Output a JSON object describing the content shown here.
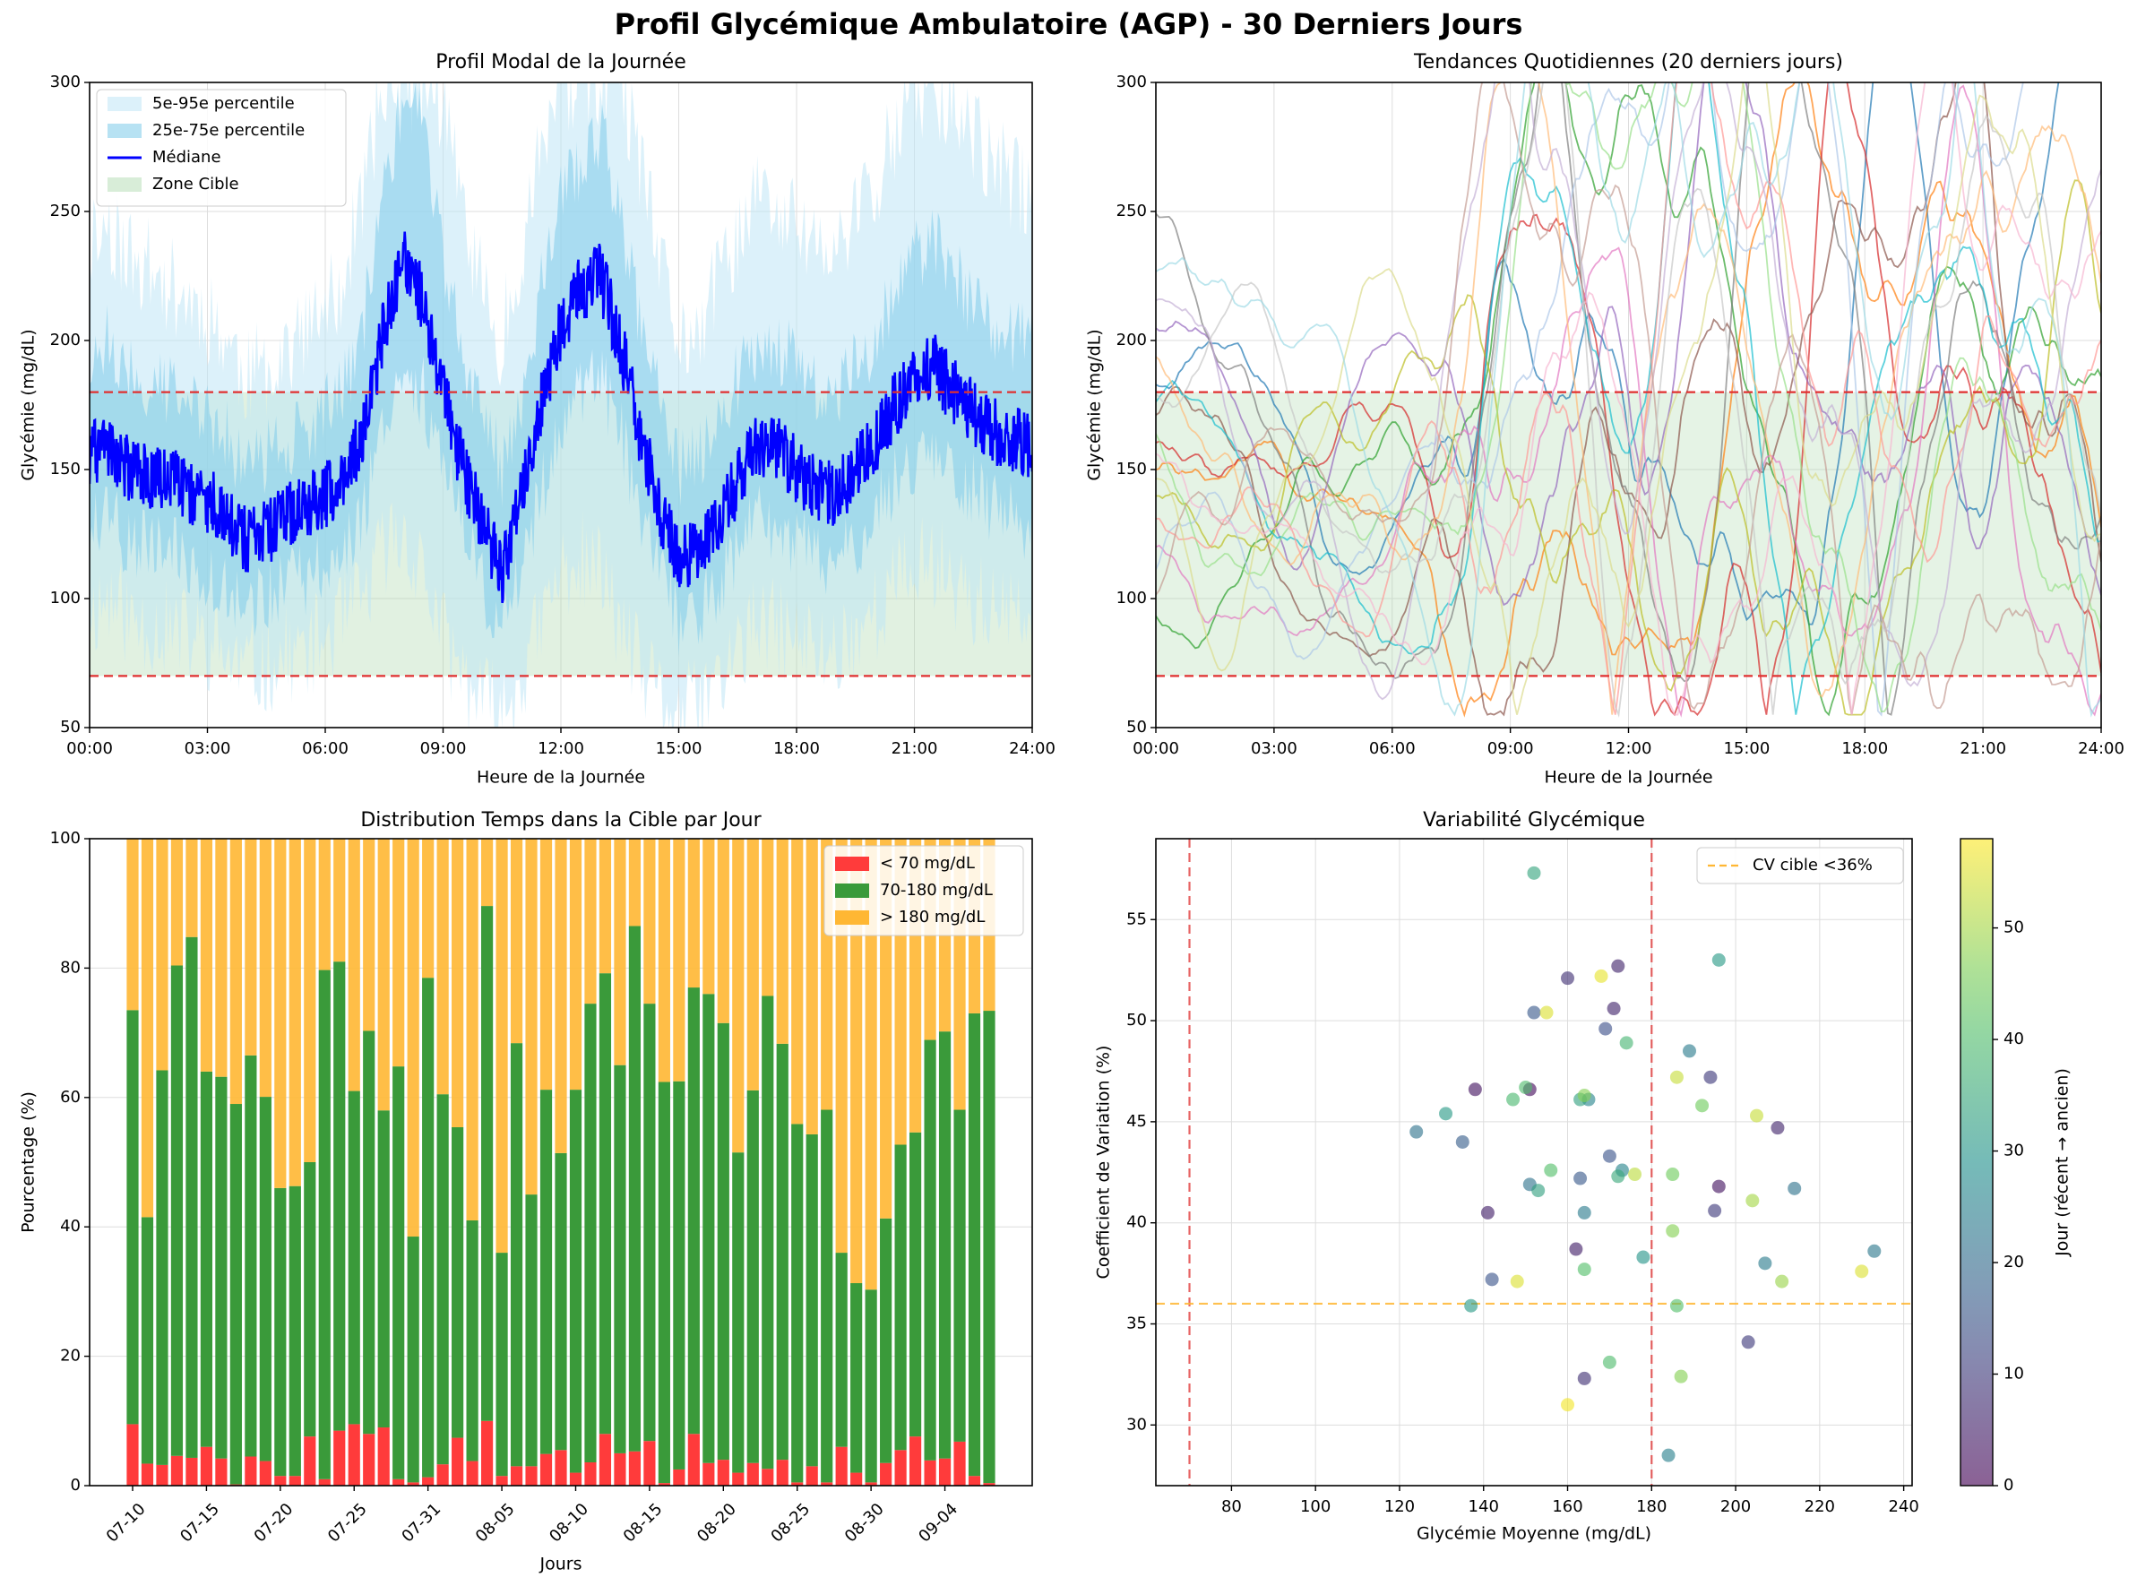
{
  "suptitle": "Profil Glycémique Ambulatoire (AGP) - 30 Derniers Jours",
  "colors": {
    "band95": "#bfe6f5",
    "band75": "#87ceeb",
    "median": "#0000ff",
    "target_zone": "#a8d8a8",
    "threshold": "#e03030",
    "below": "#ff3b3b",
    "inrange": "#3a9a3a",
    "above": "#ffb733",
    "cv_line": "#ffb733"
  },
  "chart_data": [
    {
      "id": "agp",
      "type": "area",
      "title": "Profil Modal de la Journée",
      "xlabel": "Heure de la Journée",
      "ylabel": "Glycémie (mg/dL)",
      "xlim": [
        0,
        24
      ],
      "ylim": [
        50,
        300
      ],
      "xticks": [
        "00:00",
        "03:00",
        "06:00",
        "09:00",
        "12:00",
        "15:00",
        "18:00",
        "21:00",
        "24:00"
      ],
      "yticks": [
        50,
        100,
        150,
        200,
        250,
        300
      ],
      "thresholds": [
        70,
        180
      ],
      "grid": true,
      "legend": [
        "5e-95e percentile",
        "25e-75e percentile",
        "Médiane",
        "Zone Cible"
      ],
      "legend_position": "top-left",
      "median": {
        "x": [
          0,
          0.5,
          1,
          1.5,
          2,
          2.5,
          3,
          3.5,
          4,
          4.5,
          5,
          5.5,
          6,
          6.5,
          7,
          7.5,
          8,
          8.5,
          9,
          9.5,
          10,
          10.5,
          11,
          11.5,
          12,
          12.5,
          13,
          13.5,
          14,
          14.5,
          15,
          15.5,
          16,
          16.5,
          17,
          17.5,
          18,
          18.5,
          19,
          19.5,
          20,
          20.5,
          21,
          21.5,
          22,
          22.5,
          23,
          23.5,
          24
        ],
        "y": [
          155,
          160,
          150,
          148,
          146,
          142,
          138,
          132,
          122,
          125,
          132,
          135,
          140,
          148,
          165,
          205,
          230,
          215,
          180,
          150,
          130,
          110,
          140,
          175,
          205,
          220,
          225,
          200,
          165,
          135,
          115,
          118,
          130,
          145,
          160,
          158,
          150,
          142,
          140,
          150,
          160,
          175,
          185,
          190,
          180,
          172,
          165,
          162,
          158
        ]
      },
      "p25": [
        125,
        130,
        122,
        120,
        118,
        115,
        110,
        105,
        98,
        100,
        105,
        108,
        112,
        120,
        135,
        170,
        190,
        180,
        150,
        125,
        105,
        90,
        112,
        140,
        170,
        182,
        185,
        165,
        135,
        110,
        92,
        95,
        105,
        118,
        130,
        128,
        122,
        115,
        113,
        122,
        132,
        145,
        155,
        158,
        150,
        142,
        135,
        132,
        128
      ],
      "p75": [
        195,
        200,
        188,
        185,
        180,
        175,
        170,
        162,
        150,
        155,
        162,
        165,
        172,
        182,
        210,
        260,
        295,
        280,
        235,
        195,
        170,
        150,
        180,
        220,
        255,
        270,
        280,
        252,
        210,
        175,
        150,
        155,
        170,
        185,
        200,
        198,
        190,
        180,
        178,
        190,
        202,
        218,
        232,
        238,
        225,
        215,
        205,
        202,
        198
      ],
      "p5": [
        95,
        100,
        92,
        90,
        88,
        85,
        82,
        78,
        72,
        74,
        78,
        80,
        85,
        92,
        100,
        120,
        125,
        110,
        85,
        70,
        60,
        55,
        70,
        90,
        110,
        115,
        110,
        90,
        72,
        62,
        55,
        58,
        68,
        80,
        90,
        88,
        84,
        80,
        80,
        88,
        95,
        105,
        112,
        115,
        108,
        100,
        95,
        92,
        90
      ],
      "p95": [
        240,
        245,
        232,
        228,
        222,
        216,
        210,
        200,
        185,
        190,
        198,
        202,
        210,
        225,
        260,
        300,
        300,
        300,
        290,
        250,
        220,
        200,
        235,
        275,
        300,
        300,
        300,
        300,
        270,
        230,
        200,
        205,
        222,
        240,
        255,
        252,
        245,
        235,
        232,
        248,
        262,
        280,
        295,
        298,
        290,
        280,
        268,
        262,
        255
      ]
    },
    {
      "id": "daily",
      "type": "line",
      "title": "Tendances Quotidiennes (20 derniers jours)",
      "xlabel": "Heure de la Journée",
      "ylabel": "Glycémie (mg/dL)",
      "xlim": [
        0,
        24
      ],
      "ylim": [
        50,
        300
      ],
      "xticks": [
        "00:00",
        "03:00",
        "06:00",
        "09:00",
        "12:00",
        "15:00",
        "18:00",
        "21:00",
        "24:00"
      ],
      "yticks": [
        50,
        100,
        150,
        200,
        250,
        300
      ],
      "thresholds": [
        70,
        180
      ],
      "grid": true,
      "series_count": 20,
      "start_values": [
        185,
        150,
        95,
        160,
        205,
        170,
        120,
        250,
        140,
        175,
        110,
        195,
        165,
        130,
        215,
        100,
        155,
        180,
        145,
        225
      ],
      "series_colors": [
        "#1f77b4",
        "#ff7f0e",
        "#2ca02c",
        "#d62728",
        "#9467bd",
        "#8c564b",
        "#e377c2",
        "#7f7f7f",
        "#bcbd22",
        "#17becf",
        "#aec7e8",
        "#ffbb78",
        "#98df8a",
        "#ff9896",
        "#c5b0d5",
        "#c49c94",
        "#f7b6d2",
        "#c7c7c7",
        "#dbdb8d",
        "#9edae5"
      ]
    },
    {
      "id": "tir",
      "type": "bar",
      "title": "Distribution Temps dans la Cible par Jour",
      "xlabel": "Jours",
      "ylabel": "Pourcentage (%)",
      "ylim": [
        0,
        100
      ],
      "yticks": [
        0,
        20,
        40,
        60,
        80,
        100
      ],
      "xtick_labels": [
        "07-10",
        "07-15",
        "07-20",
        "07-25",
        "07-31",
        "08-05",
        "08-10",
        "08-15",
        "08-20",
        "08-25",
        "08-30",
        "09-04"
      ],
      "xtick_index": [
        0,
        5,
        10,
        15,
        20,
        25,
        30,
        35,
        40,
        45,
        50,
        55
      ],
      "legend": [
        "< 70 mg/dL",
        "70-180 mg/dL",
        "> 180 mg/dL"
      ],
      "legend_position": "top-right",
      "grid": true,
      "series": [
        {
          "name": "< 70 mg/dL",
          "values": [
            9.5,
            3.4,
            3.2,
            4.6,
            4.3,
            6.0,
            4.2,
            0.2,
            4.5,
            3.8,
            1.5,
            1.5,
            7.6,
            1.0,
            8.5,
            9.5,
            8.0,
            9.0,
            1.0,
            0.5,
            1.3,
            3.3,
            7.4,
            3.8,
            10.0,
            1.5,
            3.0,
            3.0,
            4.9,
            5.5,
            2.0,
            3.6,
            8.0,
            5.0,
            5.3,
            6.9,
            0.4,
            2.5,
            8.0,
            3.5,
            4.0,
            2.0,
            3.5,
            2.6,
            4.0,
            0.5,
            3.0,
            0.5,
            6.0,
            2.0,
            0.5,
            3.5,
            5.5,
            7.6,
            3.9,
            4.2,
            6.8,
            1.5,
            0.4
          ]
        },
        {
          "name": "70-180 mg/dL",
          "values": [
            64.0,
            38.1,
            61.0,
            75.8,
            80.5,
            58.0,
            59.0,
            58.8,
            62.0,
            56.3,
            44.5,
            44.8,
            42.4,
            78.7,
            72.5,
            51.5,
            62.3,
            49.0,
            63.8,
            38.0,
            77.2,
            57.2,
            48.0,
            37.2,
            79.6,
            34.5,
            65.4,
            42.0,
            56.3,
            45.9,
            59.2,
            70.9,
            71.2,
            60.0,
            81.2,
            67.6,
            62.0,
            60.0,
            69.0,
            72.5,
            67.5,
            49.5,
            57.6,
            73.1,
            64.3,
            55.4,
            51.3,
            57.6,
            30.0,
            29.3,
            29.8,
            37.8,
            47.2,
            47.0,
            65.0,
            66.0,
            51.3,
            71.5,
            73.0
          ]
        }
      ]
    },
    {
      "id": "cv",
      "type": "scatter",
      "title": "Variabilité Glycémique",
      "xlabel": "Glycémie Moyenne (mg/dL)",
      "ylabel": "Coefficient de Variation (%)",
      "xlim": [
        62,
        242
      ],
      "ylim": [
        27,
        59
      ],
      "xticks": [
        80,
        100,
        120,
        140,
        160,
        180,
        200,
        220,
        240
      ],
      "yticks": [
        30,
        35,
        40,
        45,
        50,
        55
      ],
      "vlines": [
        70,
        180
      ],
      "hline": 36,
      "legend": [
        "CV cible <36%"
      ],
      "legend_position": "top-right",
      "grid": true,
      "colorbar_label": "Jour (récent → ancien)",
      "colorbar_ticks": [
        0,
        10,
        20,
        30,
        40,
        50
      ],
      "colorbar_range": [
        0,
        58
      ],
      "points": [
        {
          "x": 138,
          "y": 46.6,
          "day": 3
        },
        {
          "x": 151,
          "y": 46.6,
          "day": 2
        },
        {
          "x": 160,
          "y": 52.1,
          "day": 8
        },
        {
          "x": 172,
          "y": 52.7,
          "day": 6
        },
        {
          "x": 171,
          "y": 50.6,
          "day": 6
        },
        {
          "x": 196,
          "y": 41.8,
          "day": 3
        },
        {
          "x": 210,
          "y": 44.7,
          "day": 6
        },
        {
          "x": 195,
          "y": 40.6,
          "day": 10
        },
        {
          "x": 194,
          "y": 47.2,
          "day": 10
        },
        {
          "x": 141,
          "y": 40.5,
          "day": 5
        },
        {
          "x": 162,
          "y": 38.7,
          "day": 5
        },
        {
          "x": 164,
          "y": 32.3,
          "day": 8
        },
        {
          "x": 203,
          "y": 34.1,
          "day": 10
        },
        {
          "x": 142,
          "y": 37.2,
          "day": 15
        },
        {
          "x": 152,
          "y": 50.4,
          "day": 16
        },
        {
          "x": 169,
          "y": 49.6,
          "day": 14
        },
        {
          "x": 170,
          "y": 43.3,
          "day": 15
        },
        {
          "x": 163,
          "y": 42.2,
          "day": 16
        },
        {
          "x": 135,
          "y": 44.0,
          "day": 17
        },
        {
          "x": 124,
          "y": 44.5,
          "day": 22
        },
        {
          "x": 151,
          "y": 41.9,
          "day": 22
        },
        {
          "x": 164,
          "y": 40.5,
          "day": 24
        },
        {
          "x": 189,
          "y": 48.5,
          "day": 24
        },
        {
          "x": 207,
          "y": 38.0,
          "day": 24
        },
        {
          "x": 214,
          "y": 41.7,
          "day": 22
        },
        {
          "x": 233,
          "y": 38.6,
          "day": 23
        },
        {
          "x": 184,
          "y": 28.5,
          "day": 25
        },
        {
          "x": 165,
          "y": 46.1,
          "day": 26
        },
        {
          "x": 173,
          "y": 42.6,
          "day": 26
        },
        {
          "x": 178,
          "y": 38.3,
          "day": 30
        },
        {
          "x": 196,
          "y": 53.0,
          "day": 31
        },
        {
          "x": 152,
          "y": 57.3,
          "day": 34
        },
        {
          "x": 131,
          "y": 45.4,
          "day": 31
        },
        {
          "x": 137,
          "y": 35.9,
          "day": 31
        },
        {
          "x": 153,
          "y": 41.6,
          "day": 33
        },
        {
          "x": 163,
          "y": 46.1,
          "day": 33
        },
        {
          "x": 172,
          "y": 42.3,
          "day": 35
        },
        {
          "x": 174,
          "y": 48.9,
          "day": 38
        },
        {
          "x": 150,
          "y": 46.7,
          "day": 40
        },
        {
          "x": 147,
          "y": 46.1,
          "day": 39
        },
        {
          "x": 156,
          "y": 42.6,
          "day": 41
        },
        {
          "x": 164,
          "y": 37.7,
          "day": 41
        },
        {
          "x": 170,
          "y": 33.1,
          "day": 40
        },
        {
          "x": 186,
          "y": 35.9,
          "day": 41
        },
        {
          "x": 185,
          "y": 42.4,
          "day": 45
        },
        {
          "x": 192,
          "y": 45.8,
          "day": 45
        },
        {
          "x": 164,
          "y": 46.3,
          "day": 47
        },
        {
          "x": 185,
          "y": 39.6,
          "day": 47
        },
        {
          "x": 187,
          "y": 32.4,
          "day": 47
        },
        {
          "x": 211,
          "y": 37.1,
          "day": 49
        },
        {
          "x": 204,
          "y": 41.1,
          "day": 50
        },
        {
          "x": 176,
          "y": 42.4,
          "day": 52
        },
        {
          "x": 205,
          "y": 45.3,
          "day": 53
        },
        {
          "x": 186,
          "y": 47.2,
          "day": 53
        },
        {
          "x": 148,
          "y": 37.1,
          "day": 55
        },
        {
          "x": 155,
          "y": 50.4,
          "day": 55
        },
        {
          "x": 168,
          "y": 52.2,
          "day": 56
        },
        {
          "x": 160,
          "y": 31.0,
          "day": 57
        },
        {
          "x": 230,
          "y": 37.6,
          "day": 55
        }
      ]
    }
  ]
}
